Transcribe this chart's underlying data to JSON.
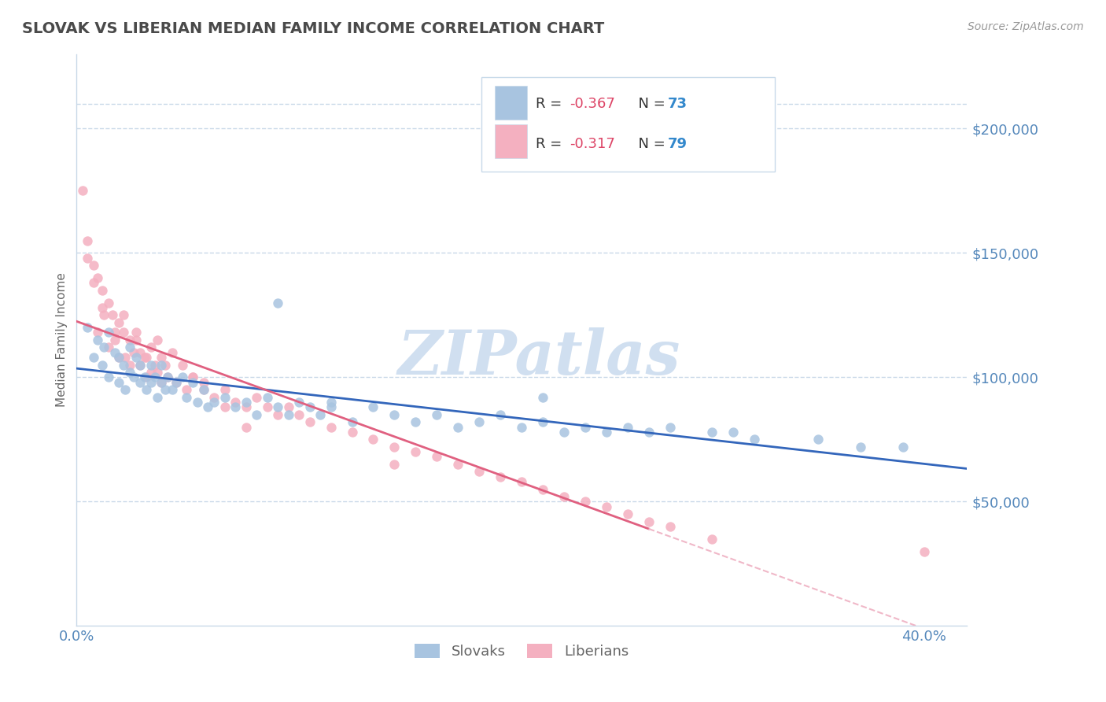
{
  "title": "SLOVAK VS LIBERIAN MEDIAN FAMILY INCOME CORRELATION CHART",
  "source_text": "Source: ZipAtlas.com",
  "ylabel": "Median Family Income",
  "xlim": [
    0.0,
    0.42
  ],
  "ylim": [
    0,
    230000
  ],
  "yticks": [
    0,
    50000,
    100000,
    150000,
    200000
  ],
  "ytick_labels": [
    "",
    "$50,000",
    "$100,000",
    "$150,000",
    "$200,000"
  ],
  "xticks": [
    0.0,
    0.4
  ],
  "xtick_labels": [
    "0.0%",
    "40.0%"
  ],
  "background_color": "#ffffff",
  "grid_color": "#c8d8e8",
  "title_color": "#4a4a4a",
  "axis_label_color": "#666666",
  "tick_color": "#5588bb",
  "watermark_color": "#d0dff0",
  "slovak_color": "#a8c4e0",
  "liberian_color": "#f4b0c0",
  "slovak_line_color": "#3366bb",
  "liberian_line_color": "#e06080",
  "liberian_dash_color": "#f0b8c8",
  "legend_R_color": "#dd4466",
  "legend_N_color": "#3388cc",
  "legend_border_color": "#c8daea",
  "R_slovak": -0.367,
  "N_slovak": 73,
  "R_liberian": -0.317,
  "N_liberian": 79,
  "slovak_scatter_x": [
    0.005,
    0.008,
    0.01,
    0.012,
    0.013,
    0.015,
    0.015,
    0.018,
    0.02,
    0.02,
    0.022,
    0.023,
    0.025,
    0.025,
    0.027,
    0.028,
    0.03,
    0.03,
    0.032,
    0.033,
    0.035,
    0.035,
    0.037,
    0.038,
    0.04,
    0.04,
    0.042,
    0.043,
    0.045,
    0.047,
    0.05,
    0.052,
    0.055,
    0.057,
    0.06,
    0.062,
    0.065,
    0.07,
    0.075,
    0.08,
    0.085,
    0.09,
    0.095,
    0.1,
    0.105,
    0.11,
    0.115,
    0.12,
    0.13,
    0.14,
    0.15,
    0.16,
    0.17,
    0.18,
    0.19,
    0.2,
    0.21,
    0.22,
    0.23,
    0.24,
    0.25,
    0.26,
    0.27,
    0.28,
    0.3,
    0.32,
    0.35,
    0.37,
    0.39,
    0.22,
    0.31,
    0.12,
    0.095
  ],
  "slovak_scatter_y": [
    120000,
    108000,
    115000,
    105000,
    112000,
    118000,
    100000,
    110000,
    108000,
    98000,
    105000,
    95000,
    112000,
    102000,
    100000,
    108000,
    98000,
    105000,
    100000,
    95000,
    105000,
    98000,
    100000,
    92000,
    98000,
    105000,
    95000,
    100000,
    95000,
    98000,
    100000,
    92000,
    98000,
    90000,
    95000,
    88000,
    90000,
    92000,
    88000,
    90000,
    85000,
    92000,
    88000,
    85000,
    90000,
    88000,
    85000,
    88000,
    82000,
    88000,
    85000,
    82000,
    85000,
    80000,
    82000,
    85000,
    80000,
    82000,
    78000,
    80000,
    78000,
    80000,
    78000,
    80000,
    78000,
    75000,
    75000,
    72000,
    72000,
    92000,
    78000,
    90000,
    130000
  ],
  "liberian_scatter_x": [
    0.003,
    0.005,
    0.008,
    0.01,
    0.01,
    0.012,
    0.013,
    0.015,
    0.015,
    0.017,
    0.018,
    0.02,
    0.02,
    0.022,
    0.023,
    0.025,
    0.025,
    0.027,
    0.028,
    0.03,
    0.03,
    0.032,
    0.033,
    0.035,
    0.035,
    0.037,
    0.038,
    0.04,
    0.04,
    0.042,
    0.043,
    0.045,
    0.047,
    0.05,
    0.052,
    0.055,
    0.06,
    0.065,
    0.07,
    0.075,
    0.08,
    0.085,
    0.09,
    0.095,
    0.1,
    0.105,
    0.11,
    0.12,
    0.13,
    0.14,
    0.15,
    0.16,
    0.17,
    0.18,
    0.19,
    0.2,
    0.21,
    0.22,
    0.23,
    0.24,
    0.25,
    0.26,
    0.27,
    0.28,
    0.3,
    0.005,
    0.008,
    0.012,
    0.018,
    0.022,
    0.028,
    0.033,
    0.038,
    0.055,
    0.06,
    0.07,
    0.08,
    0.15,
    0.4
  ],
  "liberian_scatter_y": [
    175000,
    155000,
    145000,
    140000,
    118000,
    135000,
    125000,
    130000,
    112000,
    125000,
    115000,
    122000,
    108000,
    118000,
    108000,
    115000,
    105000,
    110000,
    115000,
    110000,
    105000,
    108000,
    100000,
    112000,
    102000,
    105000,
    115000,
    108000,
    98000,
    105000,
    100000,
    110000,
    98000,
    105000,
    95000,
    100000,
    98000,
    92000,
    95000,
    90000,
    88000,
    92000,
    88000,
    85000,
    88000,
    85000,
    82000,
    80000,
    78000,
    75000,
    72000,
    70000,
    68000,
    65000,
    62000,
    60000,
    58000,
    55000,
    52000,
    50000,
    48000,
    45000,
    42000,
    40000,
    35000,
    148000,
    138000,
    128000,
    118000,
    125000,
    118000,
    108000,
    102000,
    100000,
    95000,
    88000,
    80000,
    65000,
    30000
  ]
}
